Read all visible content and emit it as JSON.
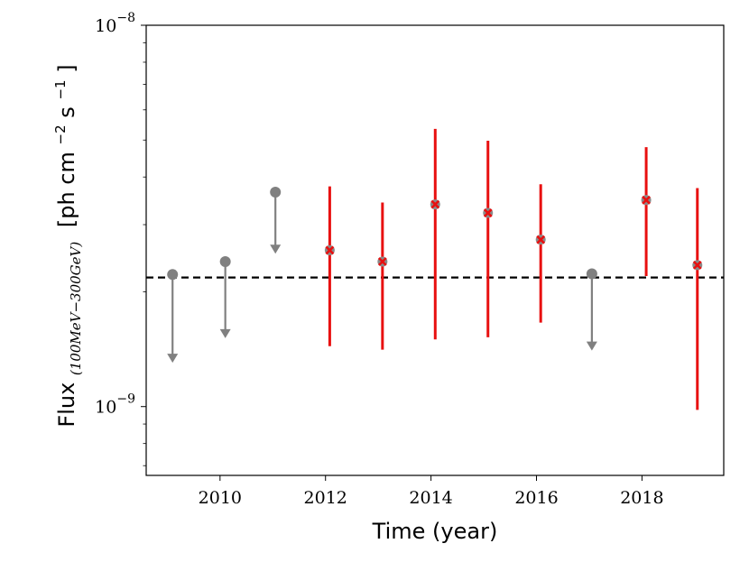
{
  "chart_data": {
    "type": "scatter",
    "xlabel": "Time (year)",
    "ylabel": {
      "main": "Flux",
      "subscript": "(100MeV−300GeV)",
      "units": "[ph cm",
      "exp1": "−2",
      "units2": " s",
      "exp2": "−1",
      "close": "]"
    },
    "xlim": [
      2008.6,
      2019.55
    ],
    "ylim": [
      6.6e-10,
      1e-08
    ],
    "yscale": "log",
    "x_ticks": [
      2010,
      2012,
      2014,
      2016,
      2018
    ],
    "x_tick_labels": [
      "2010",
      "2012",
      "2014",
      "2016",
      "2018"
    ],
    "y_ticks": [
      {
        "value": 1e-08,
        "base": "10",
        "exp": "−8"
      },
      {
        "value": 1e-09,
        "base": "10",
        "exp": "−9"
      }
    ],
    "reference_line": {
      "value": 2.18e-09,
      "style": "dashed",
      "color": "#000000"
    },
    "series": [
      {
        "kind": "upper_limits",
        "color": "#808080",
        "points": [
          {
            "x": 2009.1,
            "y": 2.22e-09,
            "arrow_to": 1.31e-09
          },
          {
            "x": 2010.1,
            "y": 2.4e-09,
            "arrow_to": 1.52e-09
          },
          {
            "x": 2011.05,
            "y": 3.65e-09,
            "arrow_to": 2.53e-09
          },
          {
            "x": 2017.05,
            "y": 2.23e-09,
            "arrow_to": 1.41e-09
          }
        ]
      },
      {
        "kind": "detections",
        "color": "#e81010",
        "points": [
          {
            "x": 2012.08,
            "y": 2.57e-09,
            "low": 1.44e-09,
            "high": 3.78e-09
          },
          {
            "x": 2013.08,
            "y": 2.4e-09,
            "low": 1.41e-09,
            "high": 3.43e-09
          },
          {
            "x": 2014.08,
            "y": 3.39e-09,
            "low": 1.5e-09,
            "high": 5.35e-09
          },
          {
            "x": 2015.08,
            "y": 3.22e-09,
            "low": 1.52e-09,
            "high": 4.98e-09
          },
          {
            "x": 2016.08,
            "y": 2.74e-09,
            "low": 1.66e-09,
            "high": 3.83e-09
          },
          {
            "x": 2018.08,
            "y": 3.48e-09,
            "low": 2.2e-09,
            "high": 4.79e-09
          },
          {
            "x": 2019.05,
            "y": 2.35e-09,
            "low": 9.8e-10,
            "high": 3.74e-09
          }
        ]
      }
    ]
  }
}
